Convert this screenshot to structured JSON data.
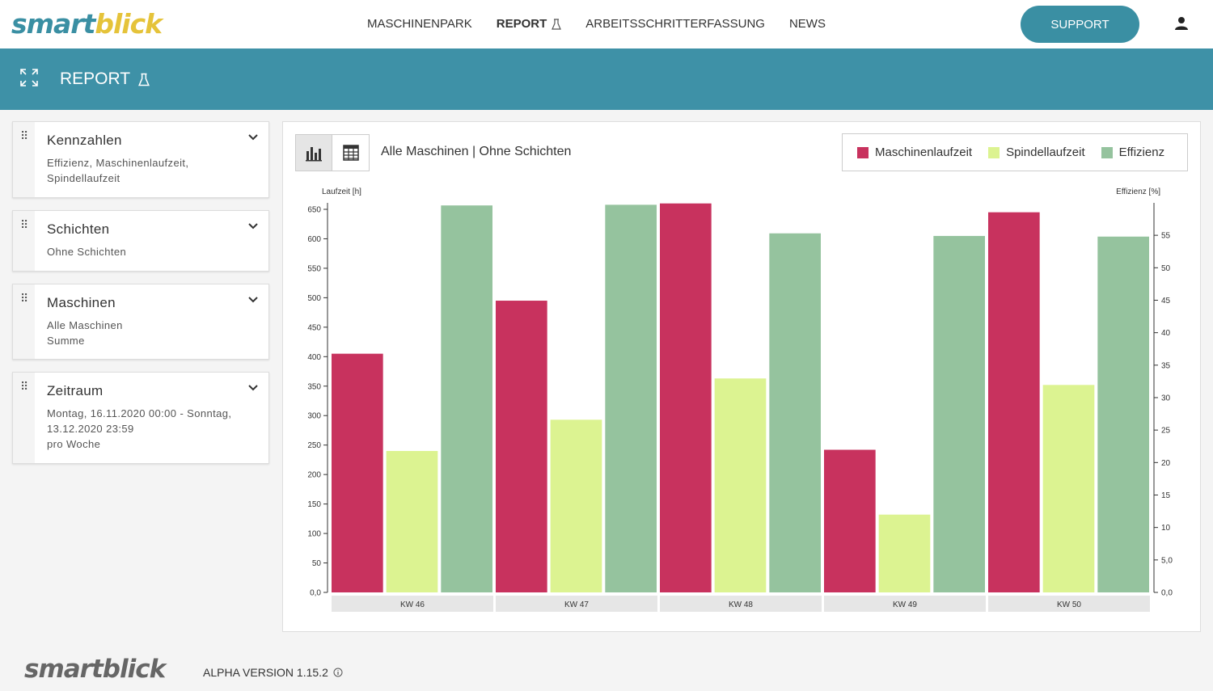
{
  "brand": {
    "logo_part1": "smart",
    "logo_part2": "blick",
    "accent": "#3a8fa3",
    "accent2": "#e5c33a"
  },
  "nav": {
    "items": [
      {
        "label": "MASCHINENPARK",
        "active": false
      },
      {
        "label": "REPORT",
        "active": true,
        "icon": "flask-icon"
      },
      {
        "label": "ARBEITSSCHRITTERFASSUNG",
        "active": false
      },
      {
        "label": "NEWS",
        "active": false
      }
    ],
    "support_label": "SUPPORT"
  },
  "header": {
    "title": "REPORT"
  },
  "sidebar": {
    "cards": [
      {
        "title": "Kennzahlen",
        "subtitle": "Effizienz, Maschinenlaufzeit, Spindellaufzeit"
      },
      {
        "title": "Schichten",
        "subtitle": "Ohne Schichten"
      },
      {
        "title": "Maschinen",
        "subtitle": "Alle Maschinen\nSumme"
      },
      {
        "title": "Zeitraum",
        "subtitle": "Montag, 16.11.2020 00:00 - Sonntag, 13.12.2020 23:59\npro Woche"
      }
    ]
  },
  "chart_header": {
    "title": "Alle Maschinen | Ohne Schichten"
  },
  "chart_data": {
    "type": "bar",
    "categories": [
      "KW 46",
      "KW 47",
      "KW 48",
      "KW 49",
      "KW 50"
    ],
    "series": [
      {
        "name": "Maschinenlaufzeit",
        "axis": "left",
        "color": "#c8325e",
        "values": [
          405,
          495,
          660,
          242,
          645
        ]
      },
      {
        "name": "Spindellaufzeit",
        "axis": "left",
        "color": "#dcf391",
        "values": [
          240,
          293,
          363,
          132,
          352
        ]
      },
      {
        "name": "Effizienz",
        "axis": "right",
        "color": "#95c39e",
        "values": [
          59.6,
          59.7,
          55.3,
          54.9,
          54.8
        ]
      }
    ],
    "ylabel": "Laufzeit [h]",
    "y2label": "Effizienz [%]",
    "ylim": [
      0,
      650
    ],
    "y2lim": [
      0,
      59
    ],
    "yticks": [
      "0,0",
      "50",
      "100",
      "150",
      "200",
      "250",
      "300",
      "350",
      "400",
      "450",
      "500",
      "550",
      "600",
      "650"
    ],
    "y2ticks": [
      "0,0",
      "5,0",
      "10",
      "15",
      "20",
      "25",
      "30",
      "35",
      "40",
      "45",
      "50",
      "55"
    ]
  },
  "footer": {
    "logo": "smartblick",
    "version": "ALPHA VERSION 1.15.2"
  }
}
